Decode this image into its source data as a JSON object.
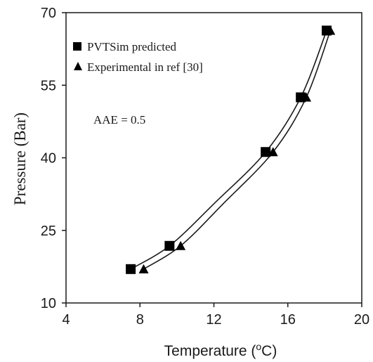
{
  "chart_data": {
    "type": "scatter",
    "xlabel": "Temperature (",
    "xlabel_sup": "o",
    "xlabel_suffix": "C)",
    "ylabel": "Pressure (Bar)",
    "xlim": [
      4,
      20
    ],
    "ylim": [
      10,
      70
    ],
    "x_ticks": [
      4,
      8,
      12,
      16,
      20
    ],
    "y_ticks": [
      10,
      25,
      40,
      55,
      70
    ],
    "grid": false,
    "legend_position": "top-left",
    "annotation": "AAE = 0.5",
    "series": [
      {
        "name": "PVTSim predicted",
        "marker": "square",
        "color": "#000000",
        "x": [
          7.5,
          9.6,
          14.8,
          16.7,
          18.1
        ],
        "y": [
          17.0,
          21.8,
          41.2,
          52.5,
          66.3
        ]
      },
      {
        "name": "Experimental in ref [30]",
        "marker": "triangle",
        "color": "#000000",
        "x": [
          8.2,
          10.2,
          15.2,
          17.0,
          18.3
        ],
        "y": [
          17.0,
          21.8,
          41.2,
          52.5,
          66.3
        ]
      }
    ],
    "curves": [
      {
        "of_series": 0,
        "x": [
          7.5,
          9.6,
          12.0,
          14.8,
          16.7,
          18.1
        ],
        "y": [
          17.0,
          21.8,
          30.5,
          41.2,
          52.5,
          66.3
        ]
      },
      {
        "of_series": 1,
        "x": [
          8.2,
          10.2,
          12.5,
          15.2,
          17.0,
          18.3
        ],
        "y": [
          17.0,
          21.8,
          30.5,
          41.2,
          52.5,
          66.3
        ]
      }
    ]
  }
}
